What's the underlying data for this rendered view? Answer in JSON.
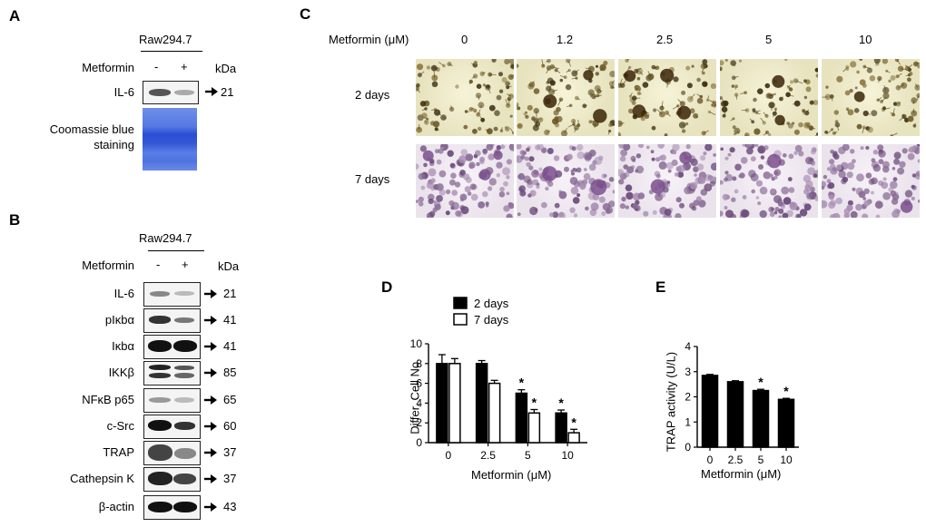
{
  "panel_letters": {
    "a": "A",
    "b": "B",
    "c": "C",
    "d": "D",
    "e": "E"
  },
  "panel_a": {
    "cell_line": "Raw294.7",
    "treatment_label": "Metformin",
    "lane_labels": [
      "-",
      "+"
    ],
    "kda_label": "kDa",
    "il6": {
      "name": "IL-6",
      "kda": "21"
    },
    "stain_label_line1": "Coomassie blue",
    "stain_label_line2": "staining"
  },
  "panel_b": {
    "cell_line": "Raw294.7",
    "treatment_label": "Metformin",
    "lane_labels": [
      "-",
      "+"
    ],
    "kda_label": "kDa",
    "rows": [
      {
        "name": "IL-6",
        "kda": "21"
      },
      {
        "name": "pIκbα",
        "kda": "41"
      },
      {
        "name": "Iκbα",
        "kda": "41"
      },
      {
        "name": "IKKβ",
        "kda": "85"
      },
      {
        "name": "NFκB p65",
        "kda": "65"
      },
      {
        "name": "c-Src",
        "kda": "60"
      },
      {
        "name": "TRAP",
        "kda": "37"
      },
      {
        "name": "Cathepsin K",
        "kda": "37"
      },
      {
        "name": "β-actin",
        "kda": "43"
      }
    ]
  },
  "panel_c": {
    "header_label": "Metformin (μM)",
    "concentrations": [
      "0",
      "1.2",
      "2.5",
      "5",
      "10"
    ],
    "row_labels": [
      "2 days",
      "7 days"
    ]
  },
  "chart_data": [
    {
      "type": "bar",
      "panel": "D",
      "categories": [
        "0",
        "2.5",
        "5",
        "10"
      ],
      "series": [
        {
          "name": "2 days",
          "values": [
            8,
            8,
            5,
            3
          ],
          "errors": [
            0.9,
            0.3,
            0.35,
            0.3
          ],
          "fill": "#000000"
        },
        {
          "name": "7 days",
          "values": [
            8,
            6,
            3,
            1
          ],
          "errors": [
            0.5,
            0.3,
            0.35,
            0.35
          ],
          "fill": "#ffffff"
        }
      ],
      "significant": [
        [
          false,
          false,
          true,
          true
        ],
        [
          false,
          false,
          true,
          true
        ]
      ],
      "significance_marker": "*",
      "xlabel": "Metformin (μM)",
      "ylabel": "Differ. Cell No.",
      "ylim": [
        0,
        10
      ],
      "yticks": [
        "0",
        "2",
        "4",
        "6",
        "8",
        "10"
      ],
      "legend": "top-left"
    },
    {
      "type": "bar",
      "panel": "E",
      "categories": [
        "0",
        "2.5",
        "5",
        "10"
      ],
      "series": [
        {
          "values": [
            2.85,
            2.6,
            2.25,
            1.9
          ],
          "errors": [
            0.04,
            0.04,
            0.05,
            0.04
          ],
          "fill": "#000000"
        }
      ],
      "significant": [
        [
          false,
          false,
          true,
          true
        ]
      ],
      "significance_marker": "*",
      "xlabel": "Metformin (μM)",
      "ylabel": "TRAP activity (U/L)",
      "ylim": [
        0,
        4
      ],
      "yticks": [
        "0",
        "1",
        "2",
        "3",
        "4"
      ]
    }
  ]
}
